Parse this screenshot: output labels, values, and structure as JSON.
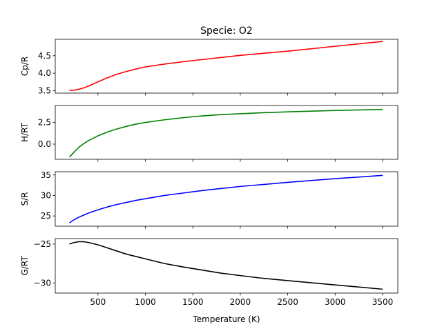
{
  "title": "Specie: O2",
  "xlabel": "Temperature (K)",
  "chart_data": {
    "type": "line",
    "title": "Specie: O2",
    "xlabel": "Temperature (K)",
    "x": [
      200,
      250,
      300,
      350,
      400,
      500,
      600,
      700,
      800,
      900,
      1000,
      1200,
      1400,
      1600,
      1800,
      2000,
      2200,
      2500,
      3000,
      3500
    ],
    "xlim": [
      50,
      3660
    ],
    "xticks": [
      500,
      1000,
      1500,
      2000,
      2500,
      3000,
      3500
    ],
    "grid": false,
    "panels": [
      {
        "ylabel": "Cp/R",
        "color": "#ff0000",
        "ylim": [
          3.43,
          4.97
        ],
        "yticks": [
          "3.5",
          "4.0",
          "4.5"
        ],
        "yticks_values": [
          3.5,
          4.0,
          4.5
        ],
        "values": [
          3.51,
          3.515,
          3.54,
          3.58,
          3.63,
          3.75,
          3.87,
          3.97,
          4.05,
          4.12,
          4.18,
          4.26,
          4.33,
          4.39,
          4.45,
          4.51,
          4.56,
          4.63,
          4.77,
          4.91
        ]
      },
      {
        "ylabel": "H/RT",
        "color": "#008000",
        "ylim": [
          -1.75,
          4.45
        ],
        "yticks": [
          "0.0",
          "2.5"
        ],
        "yticks_values": [
          0.0,
          2.5
        ],
        "values": [
          -1.5,
          -0.9,
          -0.35,
          0.05,
          0.4,
          0.95,
          1.4,
          1.75,
          2.05,
          2.3,
          2.5,
          2.8,
          3.05,
          3.25,
          3.4,
          3.5,
          3.6,
          3.72,
          3.88,
          4.0
        ]
      },
      {
        "ylabel": "S/R",
        "color": "#0000ff",
        "ylim": [
          22.5,
          35.8
        ],
        "yticks": [
          "25",
          "30",
          "35"
        ],
        "yticks_values": [
          25,
          30,
          35
        ],
        "values": [
          23.3,
          24.1,
          24.7,
          25.2,
          25.7,
          26.5,
          27.2,
          27.8,
          28.3,
          28.8,
          29.2,
          30.0,
          30.6,
          31.2,
          31.7,
          32.2,
          32.6,
          33.2,
          34.1,
          34.9
        ]
      },
      {
        "ylabel": "G/RT",
        "color": "#000000",
        "ylim": [
          -31.3,
          -24.3
        ],
        "yticks": [
          "-25",
          "-30"
        ],
        "yticks_values": [
          -25,
          -30
        ],
        "values": [
          -25.0,
          -24.8,
          -24.7,
          -24.7,
          -24.8,
          -25.1,
          -25.5,
          -25.9,
          -26.3,
          -26.6,
          -26.9,
          -27.5,
          -27.95,
          -28.35,
          -28.75,
          -29.05,
          -29.35,
          -29.7,
          -30.25,
          -30.8
        ]
      }
    ]
  }
}
